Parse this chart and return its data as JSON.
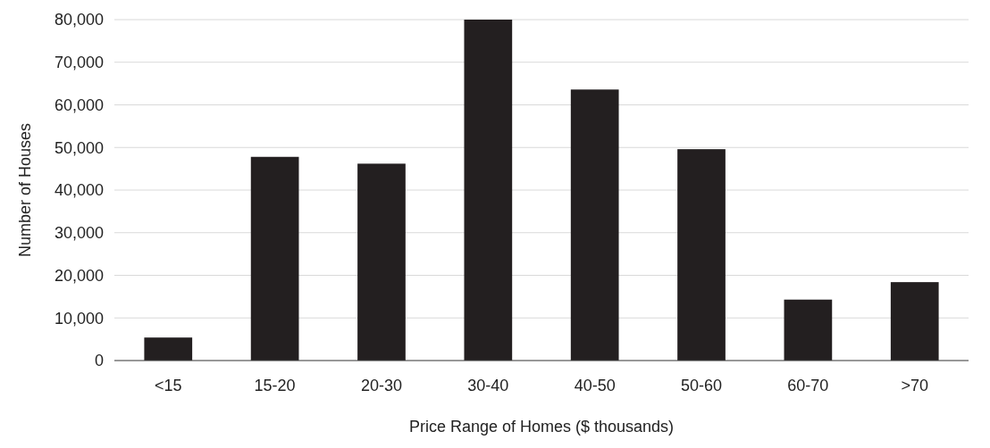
{
  "chart_data": {
    "type": "bar",
    "xlabel": "Price Range of Homes ($ thousands)",
    "ylabel": "Number of Houses",
    "categories": [
      "<15",
      "15-20",
      "20-30",
      "30-40",
      "40-50",
      "50-60",
      "60-70",
      ">70"
    ],
    "values": [
      5400,
      47800,
      46200,
      80000,
      63600,
      49600,
      14300,
      18400
    ],
    "color": "#231f20",
    "ylim": [
      0,
      80000
    ],
    "yticks": [
      {
        "value": 0,
        "label": "0"
      },
      {
        "value": 10000,
        "label": "10,000"
      },
      {
        "value": 20000,
        "label": "20,000"
      },
      {
        "value": 30000,
        "label": "30,000"
      },
      {
        "value": 40000,
        "label": "40,000"
      },
      {
        "value": 50000,
        "label": "50,000"
      },
      {
        "value": 60000,
        "label": "60,000"
      },
      {
        "value": 70000,
        "label": "70,000"
      },
      {
        "value": 80000,
        "label": "80,000"
      }
    ],
    "grid": "y"
  }
}
